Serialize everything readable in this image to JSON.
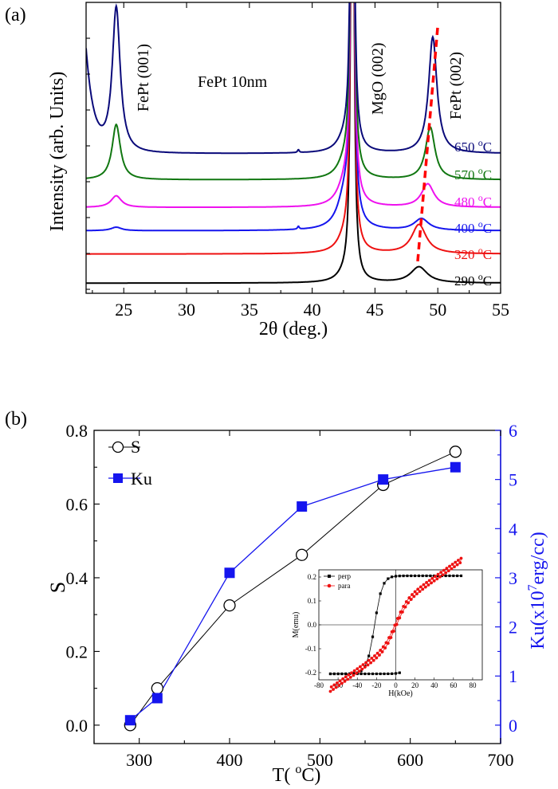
{
  "panel_a_label": "(a)",
  "panel_b_label": "(b)",
  "chart_data": [
    {
      "type": "line",
      "panel": "(a)",
      "title": "FePt 10nm",
      "xlabel": "2θ (deg.)",
      "ylabel": "Intensity (arb. Units)",
      "xlim": [
        22,
        55
      ],
      "xticks": [
        25,
        30,
        35,
        40,
        45,
        50,
        55
      ],
      "peak_annotations": [
        "FePt (001)",
        "MgO (002)",
        "FePt (002)"
      ],
      "series": [
        {
          "name": "290 °C",
          "temp": "290",
          "color": "#000000",
          "baseline": 0.035,
          "p001": 0.0,
          "w001": 0.5,
          "pMgO": 2.4,
          "shoulder": 0.02,
          "p002": 0.055,
          "c002": 48.5,
          "w002": 0.8
        },
        {
          "name": "320 °C",
          "temp": "320",
          "color": "#ee1111",
          "baseline": 0.135,
          "p001": 0.0,
          "w001": 0.5,
          "pMgO": 2.4,
          "shoulder": 0.045,
          "p002": 0.1,
          "c002": 48.5,
          "w002": 0.7
        },
        {
          "name": "400 °C",
          "temp": "400",
          "color": "#1515ee",
          "baseline": 0.215,
          "p001": 0.012,
          "w001": 0.5,
          "pMgO": 2.4,
          "shoulder": 0.11,
          "p002": 0.04,
          "c002": 48.7,
          "w002": 0.7
        },
        {
          "name": "480 °C",
          "temp": "480",
          "color": "#ee11ee",
          "baseline": 0.295,
          "p001": 0.04,
          "w001": 0.5,
          "pMgO": 2.4,
          "shoulder": 0.07,
          "p002": 0.08,
          "c002": 49.2,
          "w002": 0.6
        },
        {
          "name": "570 °C",
          "temp": "570",
          "color": "#117711",
          "baseline": 0.39,
          "p001": 0.19,
          "w001": 0.4,
          "pMgO": 2.4,
          "shoulder": 0.05,
          "p002": 0.18,
          "c002": 49.4,
          "w002": 0.45
        },
        {
          "name": "650 °C",
          "temp": "650",
          "color": "#0a0a7a",
          "baseline": 0.48,
          "p001": 0.5,
          "w001": 0.38,
          "pMgO": 2.4,
          "shoulder": 0.04,
          "p002": 0.4,
          "c002": 49.6,
          "w002": 0.4
        }
      ],
      "shift_line": {
        "color": "#ff0000",
        "x": [
          48.4,
          50.0
        ],
        "y": [
          0.11,
          0.92
        ]
      }
    },
    {
      "type": "line",
      "panel": "(b)",
      "xlabel": "T(°C)",
      "ylabel": "S",
      "y2label_prefix": "Ku(x10",
      "y2label_exp": "7",
      "y2label_suffix": "erg/cc)",
      "xlim": [
        250,
        700
      ],
      "xticks": [
        300,
        400,
        500,
        600,
        700
      ],
      "ylim": [
        -0.05,
        0.8
      ],
      "yticks": [
        "0.0",
        "0.2",
        "0.4",
        "0.6",
        "0.8"
      ],
      "y2lim": [
        -0.375,
        6
      ],
      "y2ticks": [
        "0",
        "1",
        "2",
        "3",
        "4",
        "5",
        "6"
      ],
      "series": [
        {
          "name": "S",
          "axis": "left",
          "color": "#000000",
          "marker": "open-circle",
          "x": [
            290,
            320,
            400,
            480,
            570,
            650
          ],
          "y": [
            0.0,
            0.1,
            0.325,
            0.462,
            0.652,
            0.742
          ]
        },
        {
          "name": "Ku",
          "axis": "right",
          "color": "#1515ee",
          "marker": "filled-square",
          "x": [
            290,
            320,
            400,
            480,
            570,
            650
          ],
          "y": [
            0.1,
            0.55,
            3.1,
            4.45,
            5.0,
            5.25
          ]
        }
      ],
      "inset": {
        "type": "line",
        "xlabel": "H(kOe)",
        "ylabel": "M(emu)",
        "xlim": [
          -80,
          90
        ],
        "xticks": [
          "-80",
          "-60",
          "-40",
          "-20",
          "0",
          "20",
          "40",
          "60",
          "80"
        ],
        "ylim": [
          -0.23,
          0.23
        ],
        "yticks": [
          "-0.2",
          "-0.1",
          "0.0",
          "0.1",
          "0.2"
        ],
        "series": [
          {
            "name": "perp",
            "color": "#000000",
            "marker": "square",
            "Ms": 0.205,
            "Hc": 22,
            "k": 8
          },
          {
            "name": "para",
            "color": "#ee1111",
            "marker": "circle",
            "Ms": 0.17,
            "slope": 0.0016,
            "Hc": 3
          }
        ]
      }
    }
  ]
}
